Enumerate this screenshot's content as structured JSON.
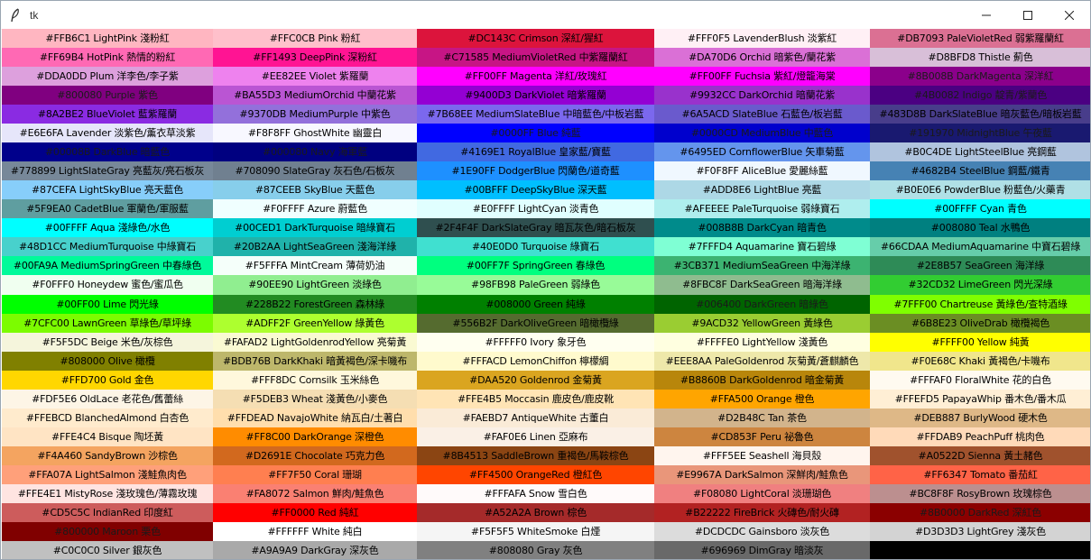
{
  "window": {
    "title": "tk",
    "icon": "feather-icon",
    "controls": [
      "minimize-icon",
      "maximize-icon",
      "close-icon"
    ]
  },
  "swatches": [
    {
      "hex": "#FFB6C1",
      "label": "#FFB6C1 LightPink 淺粉紅"
    },
    {
      "hex": "#FFC0CB",
      "label": "#FFC0CB Pink 粉紅"
    },
    {
      "hex": "#DC143C",
      "label": "#DC143C Crimson 深紅/猩紅"
    },
    {
      "hex": "#FFF0F5",
      "label": "#FFF0F5 LavenderBlush 淡紫紅"
    },
    {
      "hex": "#DB7093",
      "label": "#DB7093 PaleVioletRed 弱紫羅蘭紅"
    },
    {
      "hex": "#FF69B4",
      "label": "#FF69B4 HotPink 熱情的粉紅"
    },
    {
      "hex": "#FF1493",
      "label": "#FF1493 DeepPink 深粉紅"
    },
    {
      "hex": "#C71585",
      "label": "#C71585 MediumVioletRed 中紫羅蘭紅"
    },
    {
      "hex": "#DA70D6",
      "label": "#DA70D6 Orchid 暗紫色/蘭花紫"
    },
    {
      "hex": "#D8BFD8",
      "label": "#D8BFD8 Thistle 薊色"
    },
    {
      "hex": "#DDA0DD",
      "label": "#DDA0DD Plum 洋李色/李子紫"
    },
    {
      "hex": "#EE82EE",
      "label": "#EE82EE Violet 紫羅蘭"
    },
    {
      "hex": "#FF00FF",
      "label": "#FF00FF Magenta 洋紅/玫瑰紅"
    },
    {
      "hex": "#FF00FF",
      "label": "#FF00FF Fuchsia 紫紅/燈籠海棠"
    },
    {
      "hex": "#8B008B",
      "label": "#8B008B DarkMagenta 深洋紅"
    },
    {
      "hex": "#800080",
      "label": "#800080 Purple 紫色"
    },
    {
      "hex": "#BA55D3",
      "label": "#BA55D3 MediumOrchid 中蘭花紫"
    },
    {
      "hex": "#9400D3",
      "label": "#9400D3 DarkViolet 暗紫羅蘭"
    },
    {
      "hex": "#9932CC",
      "label": "#9932CC DarkOrchid 暗蘭花紫"
    },
    {
      "hex": "#4B0082",
      "label": "#4B0082 Indigo 靛青/紫蘭色"
    },
    {
      "hex": "#8A2BE2",
      "label": "#8A2BE2 BlueViolet 藍紫羅蘭"
    },
    {
      "hex": "#9370DB",
      "label": "#9370DB MediumPurple 中紫色"
    },
    {
      "hex": "#7B68EE",
      "label": "#7B68EE MediumSlateBlue 中暗藍色/中板岩藍"
    },
    {
      "hex": "#6A5ACD",
      "label": "#6A5ACD SlateBlue 石藍色/板岩藍"
    },
    {
      "hex": "#483D8B",
      "label": "#483D8B DarkSlateBlue 暗灰藍色/暗板岩藍"
    },
    {
      "hex": "#E6E6FA",
      "label": "#E6E6FA Lavender 淡紫色/薰衣草淡紫"
    },
    {
      "hex": "#F8F8FF",
      "label": "#F8F8FF GhostWhite 幽靈白"
    },
    {
      "hex": "#0000FF",
      "label": "#0000FF Blue 純藍"
    },
    {
      "hex": "#0000CD",
      "label": "#0000CD MediumBlue 中藍色"
    },
    {
      "hex": "#191970",
      "label": "#191970 MidnightBlue 午夜藍"
    },
    {
      "hex": "#00008B",
      "label": "#00008B DarkBlue 暗藍色"
    },
    {
      "hex": "#000080",
      "label": "#000080 Navy 海軍藍"
    },
    {
      "hex": "#4169E1",
      "label": "#4169E1 RoyalBlue 皇家藍/寶藍"
    },
    {
      "hex": "#6495ED",
      "label": "#6495ED CornflowerBlue 矢車菊藍"
    },
    {
      "hex": "#B0C4DE",
      "label": "#B0C4DE LightSteelBlue 亮鋼藍"
    },
    {
      "hex": "#778899",
      "label": "#778899 LightSlateGray 亮藍灰/亮石板灰"
    },
    {
      "hex": "#708090",
      "label": "#708090 SlateGray 灰石色/石板灰"
    },
    {
      "hex": "#1E90FF",
      "label": "#1E90FF DodgerBlue 閃蘭色/道奇藍"
    },
    {
      "hex": "#F0F8FF",
      "label": "#F0F8FF AliceBlue 愛麗絲藍"
    },
    {
      "hex": "#4682B4",
      "label": "#4682B4 SteelBlue 鋼藍/鐵青"
    },
    {
      "hex": "#87CEFA",
      "label": "#87CEFA LightSkyBlue 亮天藍色"
    },
    {
      "hex": "#87CEEB",
      "label": "#87CEEB SkyBlue 天藍色"
    },
    {
      "hex": "#00BFFF",
      "label": "#00BFFF DeepSkyBlue 深天藍"
    },
    {
      "hex": "#ADD8E6",
      "label": "#ADD8E6 LightBlue 亮藍"
    },
    {
      "hex": "#B0E0E6",
      "label": "#B0E0E6 PowderBlue 粉藍色/火藥青"
    },
    {
      "hex": "#5F9EA0",
      "label": "#5F9EA0 CadetBlue 軍蘭色/軍服藍"
    },
    {
      "hex": "#F0FFFF",
      "label": "#F0FFFF Azure 蔚藍色"
    },
    {
      "hex": "#E0FFFF",
      "label": "#E0FFFF LightCyan 淡青色"
    },
    {
      "hex": "#AFEEEE",
      "label": "#AFEEEE PaleTurquoise 弱綠寶石"
    },
    {
      "hex": "#00FFFF",
      "label": "#00FFFF Cyan 青色"
    },
    {
      "hex": "#00FFFF",
      "label": "#00FFFF Aqua 淺綠色/水色"
    },
    {
      "hex": "#00CED1",
      "label": "#00CED1 DarkTurquoise 暗綠寶石"
    },
    {
      "hex": "#2F4F4F",
      "label": "#2F4F4F DarkSlateGray 暗瓦灰色/暗石板灰"
    },
    {
      "hex": "#008B8B",
      "label": "#008B8B DarkCyan 暗青色"
    },
    {
      "hex": "#008080",
      "label": "#008080 Teal 水鴨色"
    },
    {
      "hex": "#48D1CC",
      "label": "#48D1CC MediumTurquoise 中綠寶石"
    },
    {
      "hex": "#20B2AA",
      "label": "#20B2AA LightSeaGreen 淺海洋綠"
    },
    {
      "hex": "#40E0D0",
      "label": "#40E0D0 Turquoise 綠寶石"
    },
    {
      "hex": "#7FFFD4",
      "label": "#7FFFD4 Aquamarine 寶石碧綠"
    },
    {
      "hex": "#66CDAA",
      "label": "#66CDAA MediumAquamarine 中寶石碧綠"
    },
    {
      "hex": "#00FA9A",
      "label": "#00FA9A MediumSpringGreen 中春綠色"
    },
    {
      "hex": "#F5FFFA",
      "label": "#F5FFFA MintCream 薄荷奶油"
    },
    {
      "hex": "#00FF7F",
      "label": "#00FF7F SpringGreen 春綠色"
    },
    {
      "hex": "#3CB371",
      "label": "#3CB371 MediumSeaGreen 中海洋綠"
    },
    {
      "hex": "#2E8B57",
      "label": "#2E8B57 SeaGreen 海洋綠"
    },
    {
      "hex": "#F0FFF0",
      "label": "#F0FFF0 Honeydew 蜜色/蜜瓜色"
    },
    {
      "hex": "#90EE90",
      "label": "#90EE90 LightGreen 淡綠色"
    },
    {
      "hex": "#98FB98",
      "label": "#98FB98 PaleGreen 弱綠色"
    },
    {
      "hex": "#8FBC8F",
      "label": "#8FBC8F DarkSeaGreen 暗海洋綠"
    },
    {
      "hex": "#32CD32",
      "label": "#32CD32 LimeGreen 閃光深綠"
    },
    {
      "hex": "#00FF00",
      "label": "#00FF00 Lime 閃光綠"
    },
    {
      "hex": "#228B22",
      "label": "#228B22 ForestGreen 森林綠"
    },
    {
      "hex": "#008000",
      "label": "#008000 Green 純綠"
    },
    {
      "hex": "#006400",
      "label": "#006400 DarkGreen 暗綠色"
    },
    {
      "hex": "#7FFF00",
      "label": "#7FFF00 Chartreuse 黃綠色/查特酒綠"
    },
    {
      "hex": "#7CFC00",
      "label": "#7CFC00 LawnGreen 草綠色/草坪綠"
    },
    {
      "hex": "#ADFF2F",
      "label": "#ADFF2F GreenYellow 綠黃色"
    },
    {
      "hex": "#556B2F",
      "label": "#556B2F DarkOliveGreen 暗橄欖綠"
    },
    {
      "hex": "#9ACD32",
      "label": "#9ACD32 YellowGreen 黃綠色"
    },
    {
      "hex": "#6B8E23",
      "label": "#6B8E23 OliveDrab 橄欖褐色"
    },
    {
      "hex": "#F5F5DC",
      "label": "#F5F5DC Beige 米色/灰棕色"
    },
    {
      "hex": "#FAFAD2",
      "label": "#FAFAD2 LightGoldenrodYellow 亮菊黃"
    },
    {
      "hex": "#FFFFF0",
      "label": "#FFFFF0 Ivory 象牙色"
    },
    {
      "hex": "#FFFFE0",
      "label": "#FFFFE0 LightYellow 淺黃色"
    },
    {
      "hex": "#FFFF00",
      "label": "#FFFF00 Yellow 純黃"
    },
    {
      "hex": "#808000",
      "label": "#808000 Olive 橄欖"
    },
    {
      "hex": "#BDB76B",
      "label": "#BDB76B DarkKhaki 暗黃褐色/深卡嘰布"
    },
    {
      "hex": "#FFFACD",
      "label": "#FFFACD LemonChiffon 檸檬綢"
    },
    {
      "hex": "#EEE8AA",
      "label": "#EEE8AA PaleGoldenrod 灰菊黃/蒼麒麟色"
    },
    {
      "hex": "#F0E68C",
      "label": "#F0E68C Khaki 黃褐色/卡嘰布"
    },
    {
      "hex": "#FFD700",
      "label": "#FFD700 Gold 金色"
    },
    {
      "hex": "#FFF8DC",
      "label": "#FFF8DC Cornsilk 玉米絲色"
    },
    {
      "hex": "#DAA520",
      "label": "#DAA520 Goldenrod 金菊黃"
    },
    {
      "hex": "#B8860B",
      "label": "#B8860B DarkGoldenrod 暗金菊黃"
    },
    {
      "hex": "#FFFAF0",
      "label": "#FFFAF0 FloralWhite 花的白色"
    },
    {
      "hex": "#FDF5E6",
      "label": "#FDF5E6 OldLace 老花色/舊蕾絲"
    },
    {
      "hex": "#F5DEB3",
      "label": "#F5DEB3 Wheat 淺黃色/小麥色"
    },
    {
      "hex": "#FFE4B5",
      "label": "#FFE4B5 Moccasin 鹿皮色/鹿皮靴"
    },
    {
      "hex": "#FFA500",
      "label": "#FFA500 Orange 橙色"
    },
    {
      "hex": "#FFEFD5",
      "label": "#FFEFD5 PapayaWhip 番木色/番木瓜"
    },
    {
      "hex": "#FFEBCD",
      "label": "#FFEBCD BlanchedAlmond 白杏色"
    },
    {
      "hex": "#FFDEAD",
      "label": "#FFDEAD NavajoWhite 納瓦白/土著白"
    },
    {
      "hex": "#FAEBD7",
      "label": "#FAEBD7 AntiqueWhite 古董白"
    },
    {
      "hex": "#D2B48C",
      "label": "#D2B48C Tan 茶色"
    },
    {
      "hex": "#DEB887",
      "label": "#DEB887 BurlyWood 硬木色"
    },
    {
      "hex": "#FFE4C4",
      "label": "#FFE4C4 Bisque 陶坯黃"
    },
    {
      "hex": "#FF8C00",
      "label": "#FF8C00 DarkOrange 深橙色"
    },
    {
      "hex": "#FAF0E6",
      "label": "#FAF0E6 Linen 亞麻布"
    },
    {
      "hex": "#CD853F",
      "label": "#CD853F Peru 祕魯色"
    },
    {
      "hex": "#FFDAB9",
      "label": "#FFDAB9 PeachPuff 桃肉色"
    },
    {
      "hex": "#F4A460",
      "label": "#F4A460 SandyBrown 沙棕色"
    },
    {
      "hex": "#D2691E",
      "label": "#D2691E Chocolate 巧克力色"
    },
    {
      "hex": "#8B4513",
      "label": "#8B4513 SaddleBrown 重褐色/馬鞍棕色"
    },
    {
      "hex": "#FFF5EE",
      "label": "#FFF5EE Seashell 海貝殼"
    },
    {
      "hex": "#A0522D",
      "label": "#A0522D Sienna 黃土赭色"
    },
    {
      "hex": "#FFA07A",
      "label": "#FFA07A LightSalmon 淺鮭魚肉色"
    },
    {
      "hex": "#FF7F50",
      "label": "#FF7F50 Coral 珊瑚"
    },
    {
      "hex": "#FF4500",
      "label": "#FF4500 OrangeRed 橙紅色"
    },
    {
      "hex": "#E9967A",
      "label": "#E9967A DarkSalmon 深鮮肉/鮭魚色"
    },
    {
      "hex": "#FF6347",
      "label": "#FF6347 Tomato 番茄紅"
    },
    {
      "hex": "#FFE4E1",
      "label": "#FFE4E1 MistyRose 淺玫瑰色/薄霧玫瑰"
    },
    {
      "hex": "#FA8072",
      "label": "#FA8072 Salmon 鮮肉/鮭魚色"
    },
    {
      "hex": "#FFFAFA",
      "label": "#FFFAFA Snow 雪白色"
    },
    {
      "hex": "#F08080",
      "label": "#F08080 LightCoral 淡珊瑚色"
    },
    {
      "hex": "#BC8F8F",
      "label": "#BC8F8F RosyBrown 玫瑰棕色"
    },
    {
      "hex": "#CD5C5C",
      "label": "#CD5C5C IndianRed 印度紅"
    },
    {
      "hex": "#FF0000",
      "label": "#FF0000 Red 純紅"
    },
    {
      "hex": "#A52A2A",
      "label": "#A52A2A Brown 棕色"
    },
    {
      "hex": "#B22222",
      "label": "#B22222 FireBrick 火磚色/耐火磚"
    },
    {
      "hex": "#8B0000",
      "label": "#8B0000 DarkRed 深紅色"
    },
    {
      "hex": "#800000",
      "label": "#800000 Maroon 栗色"
    },
    {
      "hex": "#FFFFFF",
      "label": "#FFFFFF White 純白"
    },
    {
      "hex": "#F5F5F5",
      "label": "#F5F5F5 WhiteSmoke 白煙"
    },
    {
      "hex": "#DCDCDC",
      "label": "#DCDCDC Gainsboro 淡灰色"
    },
    {
      "hex": "#D3D3D3",
      "label": "#D3D3D3 LightGrey 淺灰色"
    },
    {
      "hex": "#C0C0C0",
      "label": "#C0C0C0 Silver 銀灰色"
    },
    {
      "hex": "#A9A9A9",
      "label": "#A9A9A9 DarkGray 深灰色"
    },
    {
      "hex": "#808080",
      "label": "#808080 Gray 灰色"
    },
    {
      "hex": "#696969",
      "label": "#696969 DimGray 暗淡灰"
    },
    {
      "hex": "#000000",
      "label": ""
    }
  ]
}
